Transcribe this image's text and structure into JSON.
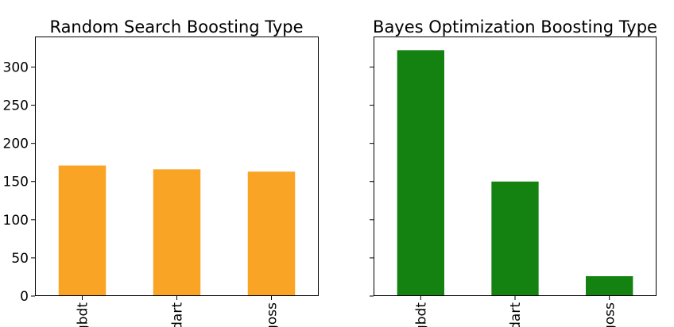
{
  "chart_data": [
    {
      "type": "bar",
      "title": "Random Search Boosting Type",
      "categories": [
        "gbdt",
        "dart",
        "goss"
      ],
      "values": [
        171,
        166,
        163
      ],
      "color": "#f9a425",
      "xlabel": "",
      "ylabel": "",
      "ylim": [
        0,
        340
      ],
      "yticks": [
        0,
        50,
        100,
        150,
        200,
        250,
        300
      ],
      "grid": false
    },
    {
      "type": "bar",
      "title": "Bayes Optimization Boosting Type",
      "categories": [
        "gbdt",
        "dart",
        "goss"
      ],
      "values": [
        322,
        150,
        26
      ],
      "color": "#138210",
      "xlabel": "",
      "ylabel": "",
      "ylim": [
        0,
        340
      ],
      "yticks": [
        0,
        50,
        100,
        150,
        200,
        250,
        300
      ],
      "yticklabels_visible": false,
      "grid": false
    }
  ]
}
